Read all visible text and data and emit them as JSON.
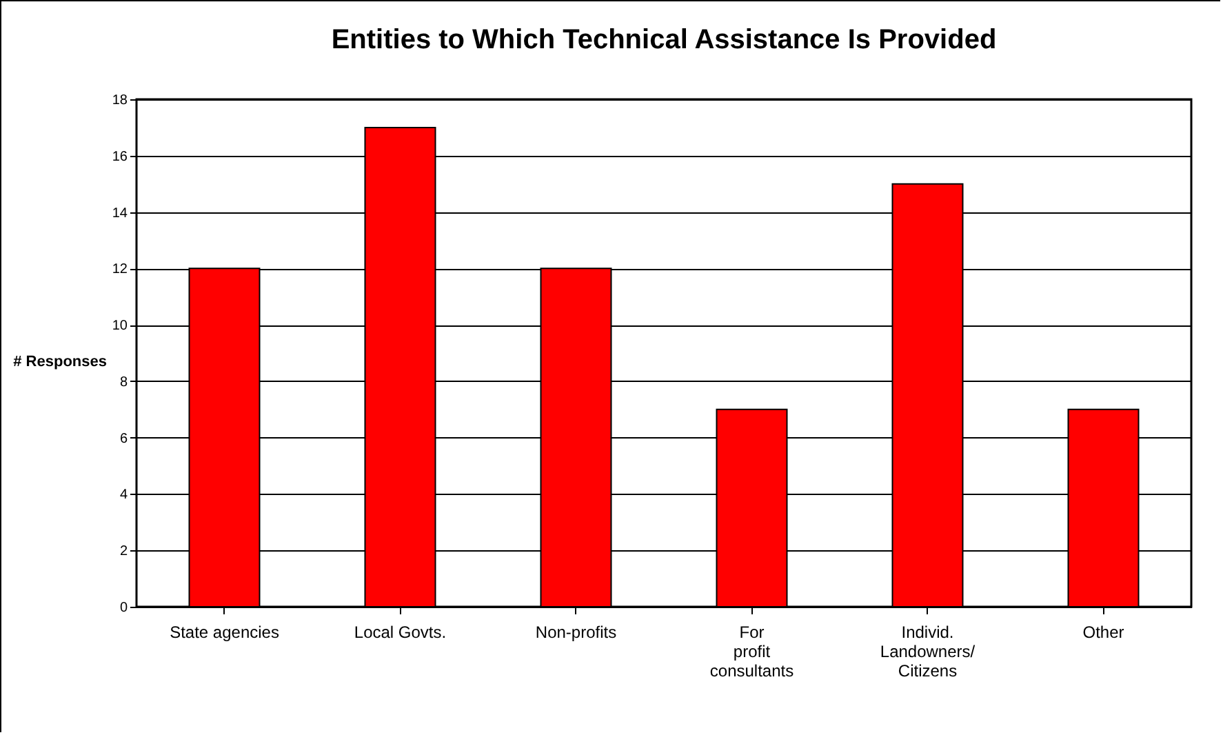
{
  "chart_data": {
    "type": "bar",
    "title": "Entities to Which Technical Assistance Is Provided",
    "ylabel": "# Responses",
    "categories": [
      "State agencies",
      "Local Govts.",
      "Non-profits",
      "For profit consultants",
      "Individ. Landowners/ Citizens",
      "Other"
    ],
    "values": [
      12,
      17,
      12,
      7,
      15,
      7
    ],
    "color": "#ff0000",
    "ylim": [
      0,
      18
    ],
    "yticks": [
      0,
      2,
      4,
      6,
      8,
      10,
      12,
      14,
      16,
      18
    ],
    "grid": "y"
  }
}
